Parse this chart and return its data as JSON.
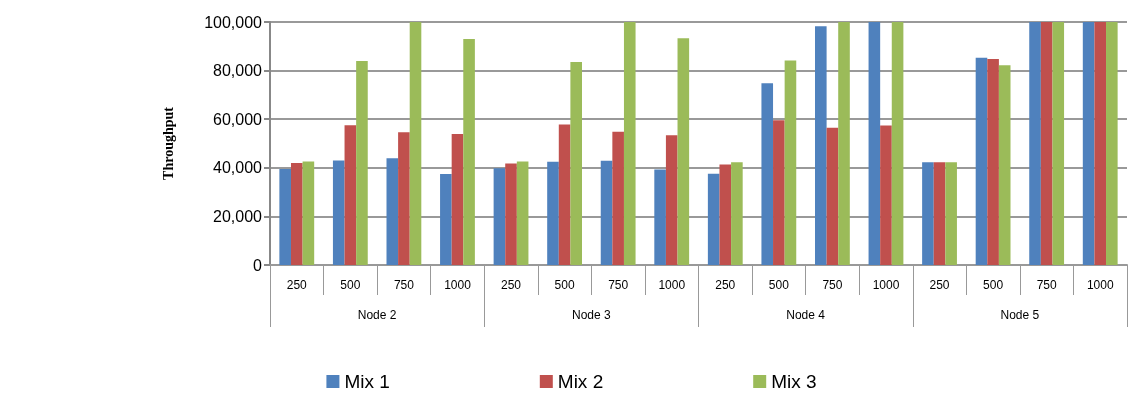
{
  "chart_data": {
    "type": "bar",
    "ylabel": "Throughput",
    "categories": [
      "250",
      "500",
      "750",
      "1000",
      "250",
      "500",
      "750",
      "1000",
      "250",
      "500",
      "750",
      "1000",
      "250",
      "500",
      "750",
      "1000"
    ],
    "annotations": [
      "Node 2",
      "Node 3",
      "Node 4",
      "Node 5"
    ],
    "series": [
      {
        "name": "Mix 1",
        "color": "#4f81bd",
        "values": [
          39500,
          43000,
          43900,
          37500,
          39800,
          42500,
          42900,
          39300,
          37600,
          74800,
          98200,
          100000,
          42300,
          85300,
          100000,
          100000
        ]
      },
      {
        "name": "Mix 2",
        "color": "#c0504d",
        "values": [
          42000,
          57500,
          54600,
          53900,
          41800,
          57800,
          54800,
          53400,
          41400,
          59600,
          56500,
          57400,
          42300,
          84800,
          100000,
          100000
        ]
      },
      {
        "name": "Mix 3",
        "color": "#9bbb59",
        "values": [
          42600,
          84000,
          100000,
          93000,
          42600,
          83500,
          100000,
          93300,
          42300,
          84200,
          100000,
          100000,
          42300,
          82200,
          100000,
          100000
        ]
      }
    ],
    "ylim": [
      0,
      100000
    ],
    "yticks": [
      0,
      {
        "value": 20000,
        "label": "20,000"
      },
      {
        "value": 40000,
        "label": "40,000"
      },
      {
        "value": 60000,
        "label": "60,000"
      },
      {
        "value": 80000,
        "label": "80,000"
      },
      {
        "value": 100000,
        "label": "100,000"
      }
    ],
    "grid": "y",
    "legend": "bottom"
  }
}
